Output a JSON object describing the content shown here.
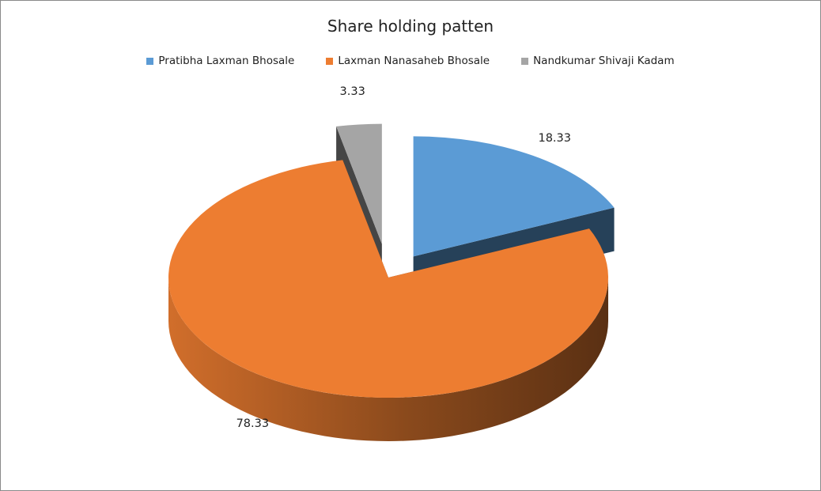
{
  "chart_data": {
    "type": "pie",
    "title": "Share holding patten",
    "categories": [
      "Pratibha Laxman Bhosale",
      "Laxman Nanasaheb Bhosale",
      "Nandkumar Shivaji Kadam"
    ],
    "values": [
      18.33,
      78.33,
      3.33
    ],
    "value_labels": [
      "18.33",
      "78.33",
      "3.33"
    ],
    "colors": [
      "#5b9bd5",
      "#ed7d31",
      "#a5a5a5"
    ],
    "exploded": true,
    "style_3d": true,
    "legend_position": "top"
  }
}
